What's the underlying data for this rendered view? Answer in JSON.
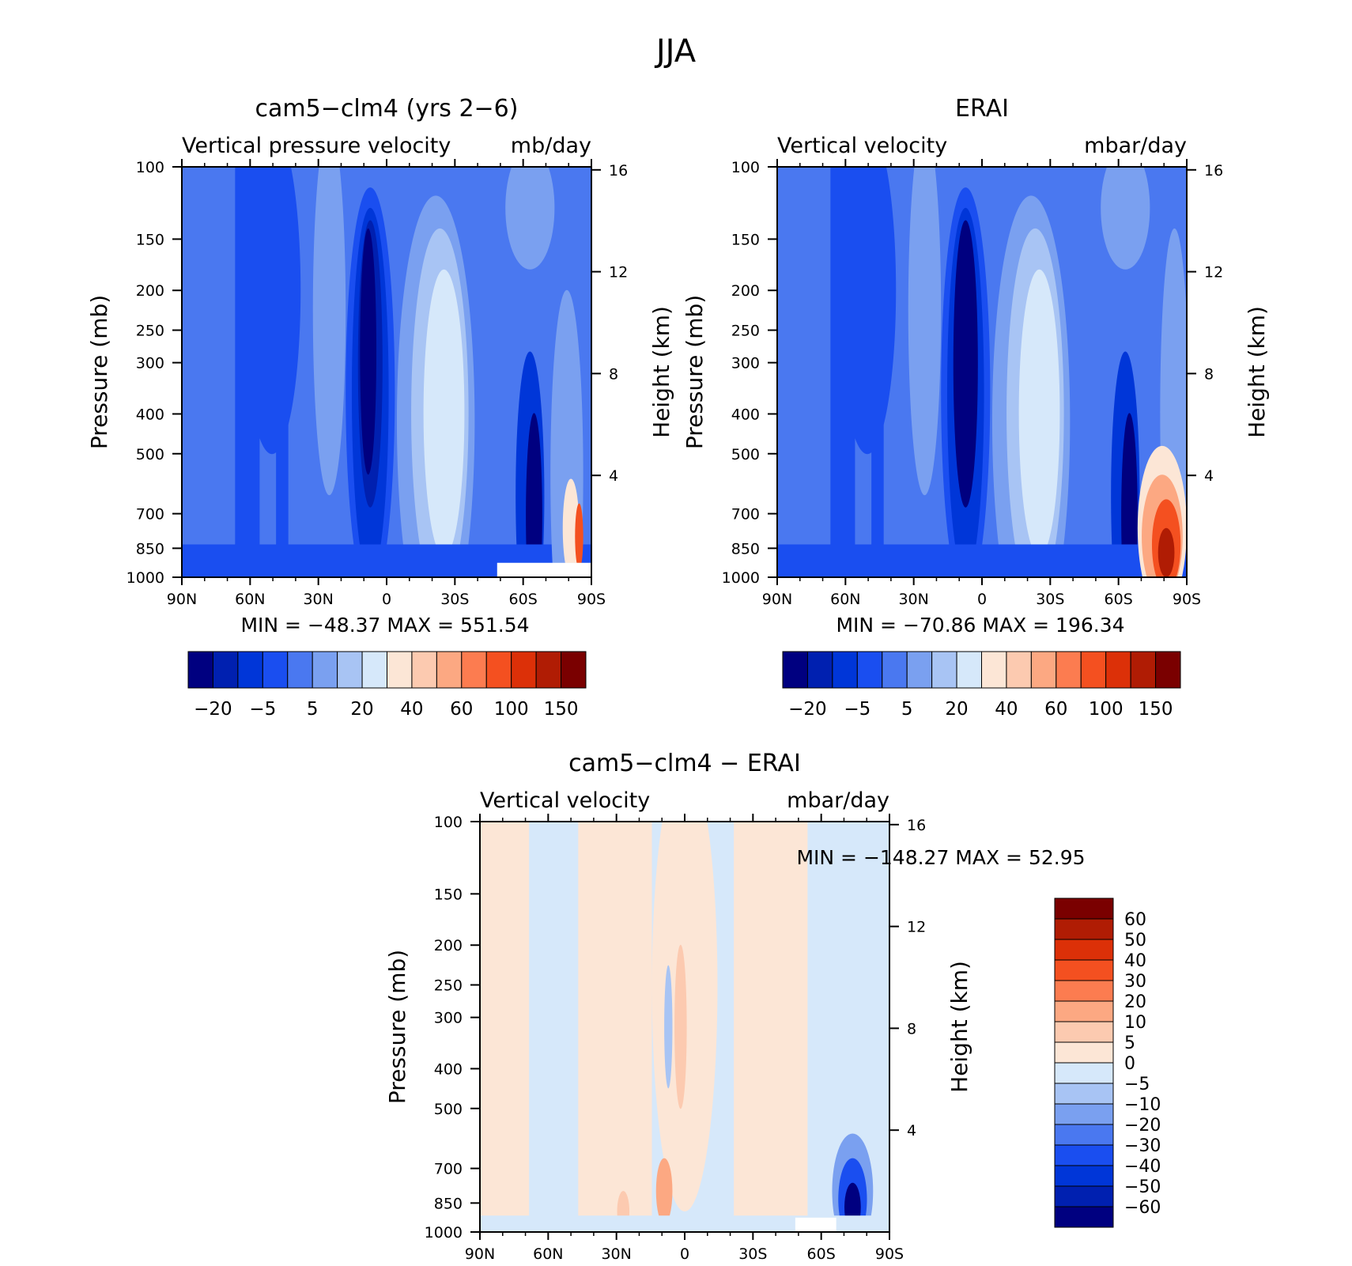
{
  "figure_title": "JJA",
  "colors": {
    "cmap": [
      "#000080",
      "#0020b0",
      "#0036d8",
      "#1a4ef0",
      "#4a78f0",
      "#7aa0f0",
      "#a8c4f4",
      "#d6e8fa",
      "#fce6d6",
      "#fccab0",
      "#fca882",
      "#fc7c50",
      "#f45020",
      "#dc3008",
      "#b01c04",
      "#7a0000"
    ],
    "diff_cmap": [
      "#000080",
      "#0020b0",
      "#0036d8",
      "#1a4ef0",
      "#4a78f0",
      "#7aa0f0",
      "#a8c4f4",
      "#d6e8fa",
      "#fce6d6",
      "#fccab0",
      "#fca882",
      "#fc7c50",
      "#f45020",
      "#dc3008",
      "#b01c04",
      "#7a0000"
    ]
  },
  "panels": [
    {
      "title": "cam5−clm4 (yrs 2−6)",
      "left_label": "Vertical pressure velocity",
      "right_label": "mb/day",
      "y_axis_title": "Pressure (mb)",
      "y2_axis_title": "Height (km)",
      "minmax": "MIN =  −48.37   MAX =  551.54",
      "colorbar_labels": [
        "−20",
        "−5",
        "5",
        "20",
        "40",
        "60",
        "100",
        "150"
      ]
    },
    {
      "title": "ERAI",
      "left_label": "Vertical velocity",
      "right_label": "mbar/day",
      "y_axis_title": "Pressure (mb)",
      "y2_axis_title": "Height (km)",
      "minmax": "MIN =  −70.86   MAX =  196.34",
      "colorbar_labels": [
        "−20",
        "−5",
        "5",
        "20",
        "40",
        "60",
        "100",
        "150"
      ]
    },
    {
      "title": "cam5−clm4 − ERAI",
      "left_label": "Vertical velocity",
      "right_label": "mbar/day",
      "y_axis_title": "Pressure (mb)",
      "y2_axis_title": "Height (km)",
      "minmax": "MIN = −148.27   MAX =   52.95",
      "colorbar_labels": [
        "60",
        "50",
        "40",
        "30",
        "20",
        "10",
        "5",
        "0",
        "−5",
        "−10",
        "−20",
        "−30",
        "−40",
        "−50",
        "−60"
      ]
    }
  ],
  "axes": {
    "x_tick_labels": [
      "90N",
      "60N",
      "30N",
      "0",
      "30S",
      "60S",
      "90S"
    ],
    "y_tick_labels": [
      "100",
      "150",
      "200",
      "250",
      "300",
      "400",
      "500",
      "700",
      "850",
      "1000"
    ],
    "y2_tick_labels": [
      "16",
      "12",
      "8",
      "4"
    ]
  },
  "chart_data": [
    {
      "type": "heatmap",
      "title": "cam5−clm4 (yrs 2−6)",
      "subtitle": "Vertical pressure velocity  mb/day",
      "xlabel": "",
      "ylabel": "Pressure (mb)",
      "y2label": "Height (km)",
      "x_ticks": [
        "90N",
        "60N",
        "30N",
        "0",
        "30S",
        "60S",
        "90S"
      ],
      "xlim": [
        90,
        -90
      ],
      "y_ticks": [
        100,
        150,
        200,
        250,
        300,
        400,
        500,
        700,
        850,
        1000
      ],
      "ylim": [
        1000,
        100
      ],
      "y_scale": "log",
      "y2_ticks": [
        16,
        12,
        8,
        4
      ],
      "levels": [
        -20,
        -10,
        -5,
        0,
        5,
        10,
        20,
        30,
        40,
        50,
        60,
        80,
        100,
        125,
        150
      ],
      "min": -48.37,
      "max": 551.54
    },
    {
      "type": "heatmap",
      "title": "ERAI",
      "subtitle": "Vertical velocity  mbar/day",
      "xlabel": "",
      "ylabel": "Pressure (mb)",
      "y2label": "Height (km)",
      "x_ticks": [
        "90N",
        "60N",
        "30N",
        "0",
        "30S",
        "60S",
        "90S"
      ],
      "xlim": [
        90,
        -90
      ],
      "y_ticks": [
        100,
        150,
        200,
        250,
        300,
        400,
        500,
        700,
        850,
        1000
      ],
      "ylim": [
        1000,
        100
      ],
      "y_scale": "log",
      "y2_ticks": [
        16,
        12,
        8,
        4
      ],
      "levels": [
        -20,
        -10,
        -5,
        0,
        5,
        10,
        20,
        30,
        40,
        50,
        60,
        80,
        100,
        125,
        150
      ],
      "min": -70.86,
      "max": 196.34
    },
    {
      "type": "heatmap",
      "title": "cam5−clm4 − ERAI",
      "subtitle": "Vertical velocity  mbar/day",
      "xlabel": "",
      "ylabel": "Pressure (mb)",
      "y2label": "Height (km)",
      "x_ticks": [
        "90N",
        "60N",
        "30N",
        "0",
        "30S",
        "60S",
        "90S"
      ],
      "xlim": [
        90,
        -90
      ],
      "y_ticks": [
        100,
        150,
        200,
        250,
        300,
        400,
        500,
        700,
        850,
        1000
      ],
      "ylim": [
        1000,
        100
      ],
      "y_scale": "log",
      "y2_ticks": [
        16,
        12,
        8,
        4
      ],
      "levels": [
        -60,
        -50,
        -40,
        -30,
        -20,
        -10,
        -5,
        0,
        5,
        10,
        20,
        30,
        40,
        50,
        60
      ],
      "min": -148.27,
      "max": 52.95
    }
  ]
}
